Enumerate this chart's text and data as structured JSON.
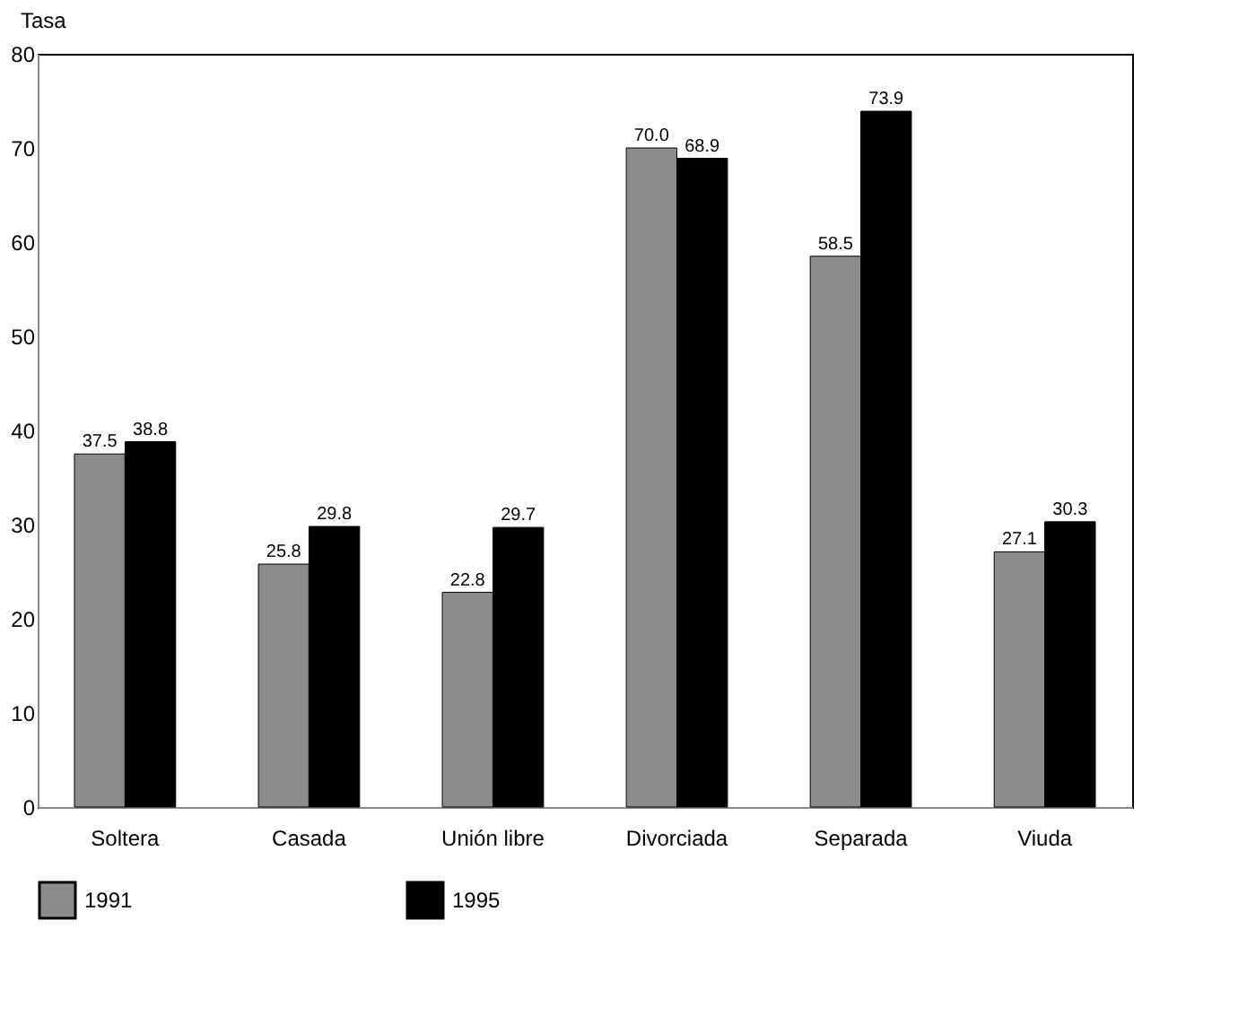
{
  "chart_data": {
    "type": "bar",
    "ylabel": "Tasa",
    "categories": [
      "Soltera",
      "Casada",
      "Unión libre",
      "Divorciada",
      "Separada",
      "Viuda"
    ],
    "series": [
      {
        "name": "1991",
        "color": "#8c8c8c",
        "values": [
          37.5,
          25.8,
          22.8,
          70.0,
          58.5,
          27.1
        ],
        "value_labels": [
          "37.5",
          "25.8",
          "22.8",
          "70.0",
          "58.5",
          "27.1"
        ]
      },
      {
        "name": "1995",
        "color": "#000000",
        "values": [
          38.8,
          29.8,
          29.7,
          68.9,
          73.9,
          30.3
        ],
        "value_labels": [
          "38.8",
          "29.8",
          "29.7",
          "68.9",
          "73.9",
          "30.3"
        ]
      }
    ],
    "ylim": [
      0,
      80
    ],
    "yticks": [
      0,
      10,
      20,
      30,
      40,
      50,
      60,
      70,
      80
    ],
    "grid": false,
    "legend": "bottom"
  }
}
